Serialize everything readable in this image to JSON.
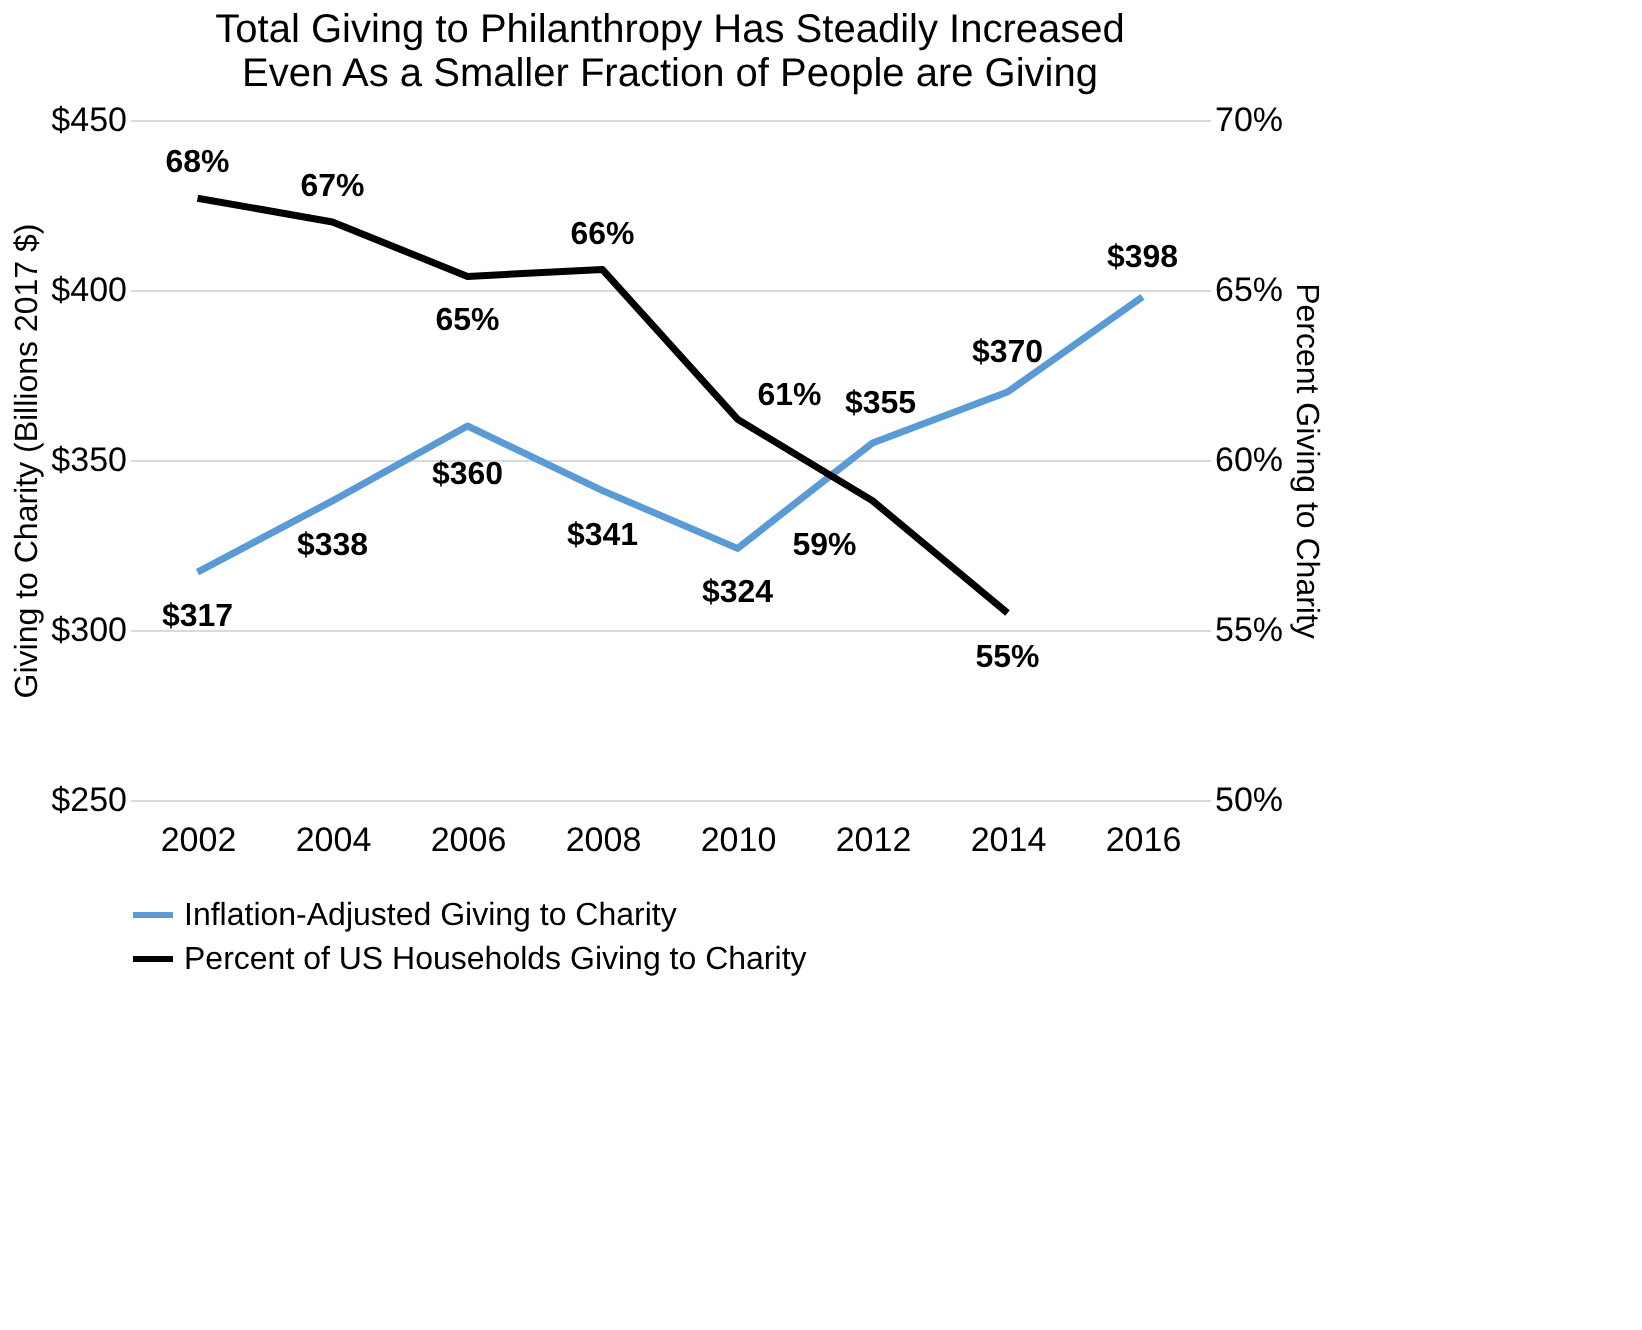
{
  "chart_data": {
    "type": "line",
    "title": "Total Giving to Philanthropy Has Steadily Increased\nEven As a Smaller Fraction of People are Giving",
    "ylabel": "Giving to Charity (Billions 2017 $)",
    "y2label": "Percent Giving to Charity",
    "categories": [
      "2002",
      "2004",
      "2006",
      "2008",
      "2010",
      "2012",
      "2014",
      "2016"
    ],
    "ylim": [
      250,
      450
    ],
    "yticks": [
      {
        "value": 250,
        "label": "$250"
      },
      {
        "value": 300,
        "label": "$300"
      },
      {
        "value": 350,
        "label": "$350"
      },
      {
        "value": 400,
        "label": "$400"
      },
      {
        "value": 450,
        "label": "$450"
      }
    ],
    "y2lim": [
      50,
      70
    ],
    "y2ticks": [
      {
        "value": 50,
        "label": "50%"
      },
      {
        "value": 55,
        "label": "55%"
      },
      {
        "value": 60,
        "label": "60%"
      },
      {
        "value": 65,
        "label": "65%"
      },
      {
        "value": 70,
        "label": "70%"
      }
    ],
    "series": [
      {
        "name": "Inflation-Adjusted Giving to Charity",
        "color": "#5b9bd5",
        "values": [
          317,
          338,
          360,
          341,
          324,
          355,
          370,
          398
        ],
        "value_labels": [
          "$317",
          "$338",
          "$360",
          "$341",
          "$324",
          "$355",
          "$370",
          "$398"
        ]
      },
      {
        "name": "Percent of US Households Giving to Charity",
        "color": "#000000",
        "axis": "y2",
        "values": [
          67.7,
          67.0,
          65.4,
          65.6,
          61.2,
          58.8,
          55.5,
          null
        ],
        "value_labels": [
          "68%",
          "67%",
          "65%",
          "66%",
          "61%",
          "59%",
          "55%",
          null
        ]
      }
    ],
    "grid": "y",
    "legend": "bottom",
    "marker": "none",
    "line_style": "solid"
  }
}
